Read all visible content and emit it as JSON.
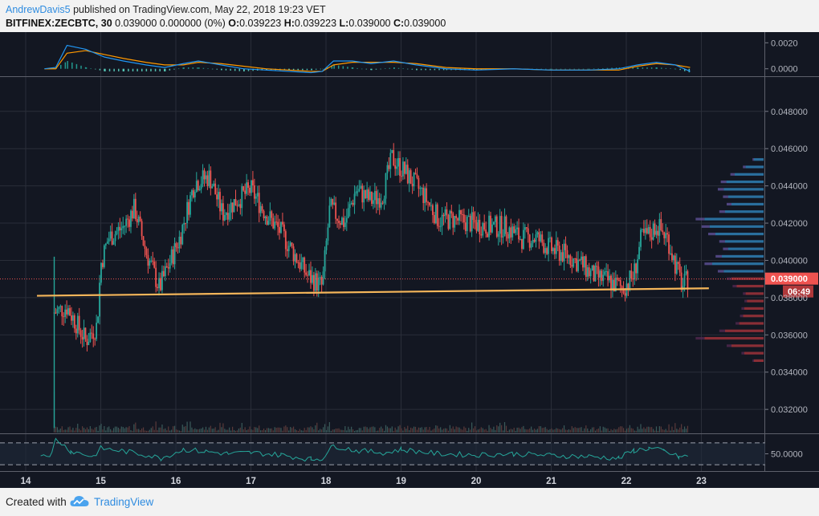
{
  "header": {
    "author": "AndrewDavis5",
    "published_text": " published on TradingView.com, May 22, 2018 19:23 VET",
    "symbol_text": "BITFINEX:ZECBTC, 30",
    "change_text": " 0.039000 0.000000 (0%) ",
    "open_label": "O:",
    "open_value": "0.039223",
    "high_label": " H:",
    "high_value": "0.039223",
    "low_label": " L:",
    "low_value": "0.039000",
    "close_label": " C:",
    "close_value": "0.039000"
  },
  "footer": {
    "created_with": "Created with",
    "brand": "TradingView"
  },
  "colors": {
    "background": "#131722",
    "up": "#26a69a",
    "down": "#ef5350",
    "support_line": "#f5b65a",
    "price_tag": "#ef5350",
    "macd_line": "#2196f3",
    "macd_signal": "#ff9800",
    "rsi_line": "#26a69a"
  },
  "chart_data": [
    {
      "type": "candlestick",
      "symbol": "BITFINEX:ZECBTC",
      "interval": "30",
      "x_tick_labels": [
        "14",
        "15",
        "16",
        "17",
        "18",
        "19",
        "20",
        "21",
        "22",
        "23"
      ],
      "y_tick_labels": [
        "0.032000",
        "0.034000",
        "0.036000",
        "0.038000",
        "0.040000",
        "0.042000",
        "0.044000",
        "0.046000",
        "0.048000"
      ],
      "ylim": [
        0.0308,
        0.0498
      ],
      "grid": true,
      "last_price_label": "0.039000",
      "countdown_label": "06:49",
      "last_price": 0.039,
      "close_path": [
        {
          "day": 14.38,
          "price": 0.0372
        },
        {
          "day": 14.55,
          "price": 0.0375
        },
        {
          "day": 14.8,
          "price": 0.0357
        },
        {
          "day": 14.95,
          "price": 0.0365
        },
        {
          "day": 15.0,
          "price": 0.0398
        },
        {
          "day": 15.1,
          "price": 0.0412
        },
        {
          "day": 15.3,
          "price": 0.0418
        },
        {
          "day": 15.45,
          "price": 0.0428
        },
        {
          "day": 15.6,
          "price": 0.0405
        },
        {
          "day": 15.78,
          "price": 0.0385
        },
        {
          "day": 15.95,
          "price": 0.0402
        },
        {
          "day": 16.05,
          "price": 0.0412
        },
        {
          "day": 16.25,
          "price": 0.0442
        },
        {
          "day": 16.45,
          "price": 0.0445
        },
        {
          "day": 16.62,
          "price": 0.0425
        },
        {
          "day": 16.8,
          "price": 0.0432
        },
        {
          "day": 17.0,
          "price": 0.0438
        },
        {
          "day": 17.2,
          "price": 0.0425
        },
        {
          "day": 17.4,
          "price": 0.0415
        },
        {
          "day": 17.6,
          "price": 0.0402
        },
        {
          "day": 17.75,
          "price": 0.0392
        },
        {
          "day": 17.95,
          "price": 0.0386
        },
        {
          "day": 18.05,
          "price": 0.0428
        },
        {
          "day": 18.25,
          "price": 0.042
        },
        {
          "day": 18.4,
          "price": 0.0438
        },
        {
          "day": 18.6,
          "price": 0.0432
        },
        {
          "day": 18.75,
          "price": 0.0435
        },
        {
          "day": 18.88,
          "price": 0.0455
        },
        {
          "day": 19.1,
          "price": 0.0445
        },
        {
          "day": 19.3,
          "price": 0.0435
        },
        {
          "day": 19.5,
          "price": 0.0422
        },
        {
          "day": 19.7,
          "price": 0.0422
        },
        {
          "day": 19.95,
          "price": 0.042
        },
        {
          "day": 20.2,
          "price": 0.0418
        },
        {
          "day": 20.4,
          "price": 0.0418
        },
        {
          "day": 20.6,
          "price": 0.0412
        },
        {
          "day": 20.8,
          "price": 0.0412
        },
        {
          "day": 21.0,
          "price": 0.0406
        },
        {
          "day": 21.2,
          "price": 0.0403
        },
        {
          "day": 21.4,
          "price": 0.0398
        },
        {
          "day": 21.55,
          "price": 0.0392
        },
        {
          "day": 21.75,
          "price": 0.0389
        },
        {
          "day": 21.95,
          "price": 0.0385
        },
        {
          "day": 22.1,
          "price": 0.0392
        },
        {
          "day": 22.2,
          "price": 0.0412
        },
        {
          "day": 22.32,
          "price": 0.0414
        },
        {
          "day": 22.4,
          "price": 0.0419
        },
        {
          "day": 22.55,
          "price": 0.0412
        },
        {
          "day": 22.65,
          "price": 0.0398
        },
        {
          "day": 22.75,
          "price": 0.0386
        },
        {
          "day": 22.82,
          "price": 0.039
        }
      ],
      "support_line": [
        {
          "day": 14.15,
          "price": 0.0381
        },
        {
          "day": 23.1,
          "price": 0.0385
        }
      ]
    },
    {
      "type": "histogram",
      "name": "volume_profile",
      "levels": [
        {
          "price": 0.0454,
          "volume": 0.15,
          "side": "up"
        },
        {
          "price": 0.045,
          "volume": 0.28,
          "side": "up"
        },
        {
          "price": 0.0446,
          "volume": 0.45,
          "side": "up"
        },
        {
          "price": 0.0442,
          "volume": 0.58,
          "side": "up"
        },
        {
          "price": 0.0438,
          "volume": 0.62,
          "side": "up"
        },
        {
          "price": 0.0434,
          "volume": 0.55,
          "side": "up"
        },
        {
          "price": 0.043,
          "volume": 0.5,
          "side": "up"
        },
        {
          "price": 0.0426,
          "volume": 0.6,
          "side": "up"
        },
        {
          "price": 0.0422,
          "volume": 0.92,
          "side": "up"
        },
        {
          "price": 0.0418,
          "volume": 0.84,
          "side": "up"
        },
        {
          "price": 0.0414,
          "volume": 0.75,
          "side": "up"
        },
        {
          "price": 0.041,
          "volume": 0.6,
          "side": "up"
        },
        {
          "price": 0.0406,
          "volume": 0.55,
          "side": "up"
        },
        {
          "price": 0.0402,
          "volume": 0.65,
          "side": "up"
        },
        {
          "price": 0.0398,
          "volume": 0.8,
          "side": "up"
        },
        {
          "price": 0.0394,
          "volume": 0.62,
          "side": "up"
        },
        {
          "price": 0.039,
          "volume": 0.5,
          "side": "down"
        },
        {
          "price": 0.0386,
          "volume": 0.42,
          "side": "down"
        },
        {
          "price": 0.0382,
          "volume": 0.28,
          "side": "down"
        },
        {
          "price": 0.0378,
          "volume": 0.26,
          "side": "down"
        },
        {
          "price": 0.0374,
          "volume": 0.3,
          "side": "down"
        },
        {
          "price": 0.037,
          "volume": 0.32,
          "side": "down"
        },
        {
          "price": 0.0366,
          "volume": 0.38,
          "side": "down"
        },
        {
          "price": 0.0362,
          "volume": 0.6,
          "side": "down"
        },
        {
          "price": 0.0358,
          "volume": 0.92,
          "side": "down"
        },
        {
          "price": 0.0354,
          "volume": 0.5,
          "side": "down"
        },
        {
          "price": 0.035,
          "volume": 0.3,
          "side": "down"
        },
        {
          "price": 0.0346,
          "volume": 0.15,
          "side": "down"
        }
      ]
    },
    {
      "type": "line",
      "name": "MACD",
      "y_tick_labels": [
        "0.0020",
        "0.0000"
      ],
      "ylim": [
        -0.00045,
        0.0027
      ],
      "x": [
        14.25,
        14.4,
        14.55,
        14.8,
        15.05,
        15.3,
        15.6,
        15.85,
        16.1,
        16.3,
        16.6,
        16.9,
        17.2,
        17.5,
        17.8,
        17.95,
        18.1,
        18.35,
        18.6,
        18.9,
        19.2,
        19.6,
        20.0,
        20.5,
        21.0,
        21.5,
        21.9,
        22.15,
        22.4,
        22.65,
        22.85
      ],
      "macd": [
        0.0,
        0.0001,
        0.0018,
        0.0015,
        0.0009,
        0.0006,
        0.0003,
        0.0001,
        0.0004,
        0.0006,
        0.0003,
        0.0,
        -0.0001,
        -0.0002,
        -0.0003,
        -0.0002,
        0.0006,
        0.0006,
        0.0004,
        0.0006,
        0.0003,
        0.0,
        -0.0001,
        0.0,
        -0.0001,
        -0.0001,
        0.0,
        0.0003,
        0.0005,
        0.0003,
        -0.0002
      ],
      "signal": [
        0.0,
        0.0,
        0.0012,
        0.0014,
        0.0011,
        0.0008,
        0.0005,
        0.0003,
        0.0003,
        0.0005,
        0.0004,
        0.0002,
        0.0,
        -0.0001,
        -0.0002,
        -0.0002,
        0.0003,
        0.0005,
        0.0005,
        0.0005,
        0.0004,
        0.0001,
        0.0,
        0.0,
        -0.0001,
        -0.0001,
        -0.0001,
        0.0002,
        0.0004,
        0.0003,
        0.0001
      ]
    },
    {
      "type": "line",
      "name": "RSI",
      "y_tick_labels": [
        "50.0000"
      ],
      "bands": [
        70,
        30
      ],
      "ylim": [
        20,
        80
      ],
      "x": [
        14.2,
        14.35,
        14.4,
        14.6,
        14.9,
        15.0,
        15.3,
        15.6,
        15.8,
        16.1,
        16.4,
        16.7,
        17.0,
        17.4,
        17.8,
        17.95,
        18.1,
        18.4,
        18.8,
        19.0,
        19.5,
        20.0,
        20.5,
        21.0,
        21.5,
        21.9,
        22.1,
        22.3,
        22.5,
        22.7,
        22.85
      ],
      "values": [
        48,
        50,
        78,
        55,
        45,
        60,
        55,
        48,
        42,
        58,
        54,
        50,
        52,
        48,
        40,
        42,
        65,
        56,
        52,
        58,
        50,
        48,
        50,
        47,
        45,
        42,
        56,
        60,
        55,
        44,
        46
      ]
    }
  ]
}
